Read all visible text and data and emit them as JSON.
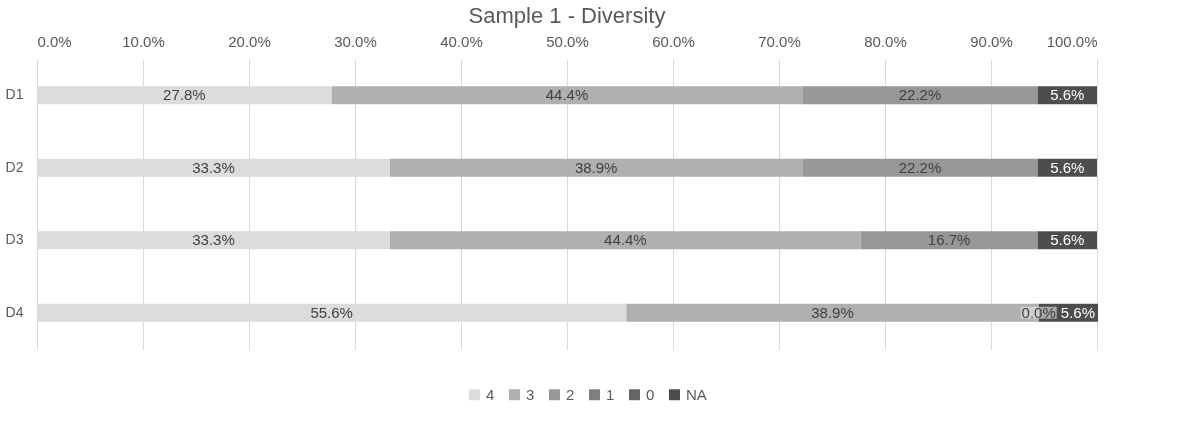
{
  "chart_data": {
    "type": "bar",
    "orientation": "horizontal",
    "stacked": true,
    "title": "Sample 1 - Diversity",
    "categories": [
      "D1",
      "D2",
      "D3",
      "D4"
    ],
    "series": [
      {
        "name": "4",
        "color": "#dcdcdc",
        "values": [
          27.8,
          33.3,
          33.3,
          55.6
        ],
        "value_labels": [
          "27.8%",
          "33.3%",
          "33.3%",
          "55.6%"
        ]
      },
      {
        "name": "3",
        "color": "#b0b0b0",
        "values": [
          44.4,
          38.9,
          44.4,
          38.9
        ],
        "value_labels": [
          "44.4%",
          "38.9%",
          "44.4%",
          "38.9%"
        ]
      },
      {
        "name": "2",
        "color": "#979797",
        "values": [
          22.2,
          22.2,
          16.7,
          0.0
        ],
        "value_labels": [
          "22.2%",
          "22.2%",
          "16.7%",
          "0.0%"
        ]
      },
      {
        "name": "1",
        "color": "#7f7f7f",
        "values": [
          0,
          0,
          0,
          0
        ],
        "value_labels": [
          null,
          null,
          null,
          null
        ]
      },
      {
        "name": "0",
        "color": "#656565",
        "values": [
          0,
          0,
          0,
          0
        ],
        "value_labels": [
          null,
          null,
          null,
          null
        ]
      },
      {
        "name": "NA",
        "color": "#4d4d4d",
        "values": [
          5.6,
          5.6,
          5.6,
          5.6
        ],
        "value_labels": [
          "5.6%",
          "5.6%",
          "5.6%",
          "5.6%"
        ]
      }
    ],
    "xlim": [
      0,
      100
    ],
    "xticks": [
      {
        "value": 0,
        "label": "0.0%"
      },
      {
        "value": 10,
        "label": "10.0%"
      },
      {
        "value": 20,
        "label": "20.0%"
      },
      {
        "value": 30,
        "label": "30.0%"
      },
      {
        "value": 40,
        "label": "40.0%"
      },
      {
        "value": 50,
        "label": "50.0%"
      },
      {
        "value": 60,
        "label": "60.0%"
      },
      {
        "value": 70,
        "label": "70.0%"
      },
      {
        "value": 80,
        "label": "80.0%"
      },
      {
        "value": 90,
        "label": "90.0%"
      },
      {
        "value": 100,
        "label": "100.0%"
      }
    ],
    "grid": "x",
    "legend": "bottom"
  }
}
